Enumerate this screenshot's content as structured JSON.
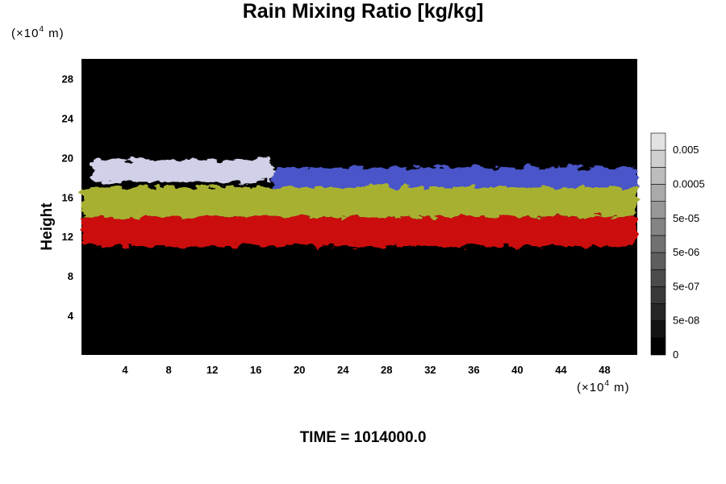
{
  "chart_data": {
    "type": "heatmap",
    "title": "Rain Mixing Ratio [kg/kg]",
    "ylabel": "Height",
    "y_unit": {
      "pre": "(×10",
      "exp": "4",
      "post": " m)"
    },
    "x_unit": {
      "pre": "(×10",
      "exp": "4",
      "post": " m)"
    },
    "x_ticks": [
      4,
      8,
      12,
      16,
      20,
      24,
      28,
      32,
      36,
      40,
      44,
      48
    ],
    "y_ticks": [
      4,
      8,
      12,
      16,
      20,
      24,
      28
    ],
    "xlim": [
      0,
      51
    ],
    "ylim": [
      0,
      30
    ],
    "colorbar": {
      "tick_labels": [
        "0",
        "5e-08",
        "5e-07",
        "5e-06",
        "5e-05",
        "0.0005",
        "0.005"
      ],
      "levels": 13
    },
    "background_color": "#000000",
    "cloud_bands": [
      {
        "name": "",
        "color": "#d0d0e8",
        "x_start": 1.0,
        "x_end": 17.5,
        "y_bottom": 17.5,
        "y_top": 19.8
      },
      {
        "name": "",
        "color": "#4a55c8",
        "x_start": 17.5,
        "x_end": 51.0,
        "y_bottom": 16.5,
        "y_top": 19.0
      },
      {
        "name": "",
        "color": "#a8b030",
        "x_start": 0.0,
        "x_end": 51.0,
        "y_bottom": 14.0,
        "y_top": 17.0
      },
      {
        "name": "",
        "color": "#cc1010",
        "x_start": 0.0,
        "x_end": 51.0,
        "y_bottom": 11.0,
        "y_top": 14.0
      }
    ],
    "footer_label": "TIME = 1014000.0"
  }
}
